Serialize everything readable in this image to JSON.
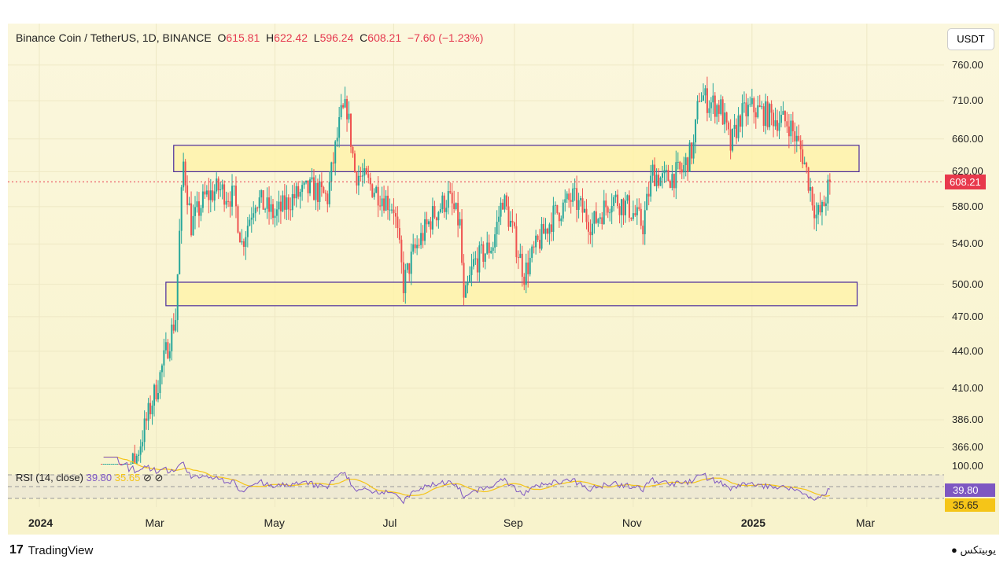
{
  "header": {
    "symbol": "Binance Coin / TetherUS, 1D, BINANCE",
    "o_label": "O",
    "o": "615.81",
    "h_label": "H",
    "h": "622.42",
    "l_label": "L",
    "l": "596.24",
    "c_label": "C",
    "c": "608.21",
    "change": "−7.60 (−1.23%)"
  },
  "currency_button": "USDT",
  "current_price": "608.21",
  "rsi": {
    "label": "RSI (14, close)",
    "value": "39.80",
    "ma": "35.65",
    "top_tick": "100.00"
  },
  "colors": {
    "up": "#26a69a",
    "down": "#ef5350",
    "rsi": "#7e57c2",
    "rsi_ma": "#f5c518",
    "zone_border": "#4a2a9a",
    "zone_fill": "#fff3a8"
  },
  "footer": {
    "brand": "TradingView",
    "watermark": "یوبیتکس"
  },
  "chart_data": {
    "type": "candlestick",
    "title": "Binance Coin / TetherUS, 1D, BINANCE",
    "y_scale": "log",
    "y_ticks": [
      "760.00",
      "710.00",
      "660.00",
      "620.00",
      "580.00",
      "540.00",
      "500.00",
      "470.00",
      "440.00",
      "410.00",
      "386.00",
      "366.00"
    ],
    "x_ticks": [
      {
        "label": "2024",
        "bold": true,
        "day": 0
      },
      {
        "label": "Mar",
        "day": 60
      },
      {
        "label": "May",
        "day": 121
      },
      {
        "label": "Jul",
        "day": 182
      },
      {
        "label": "Sep",
        "day": 244
      },
      {
        "label": "Nov",
        "day": 305
      },
      {
        "label": "2025",
        "bold": true,
        "day": 366
      },
      {
        "label": "Mar",
        "day": 425
      }
    ],
    "zones": [
      {
        "name": "resistance",
        "low": 620,
        "high": 652,
        "from_day": 69,
        "to_day": 421
      },
      {
        "name": "support",
        "low": 480,
        "high": 502,
        "from_day": 65,
        "to_day": 420
      }
    ],
    "close_path_day_price": [
      [
        31,
        310
      ],
      [
        50,
        360
      ],
      [
        62,
        420
      ],
      [
        70,
        470
      ],
      [
        74,
        630
      ],
      [
        78,
        560
      ],
      [
        85,
        590
      ],
      [
        92,
        600
      ],
      [
        100,
        590
      ],
      [
        104,
        540
      ],
      [
        111,
        590
      ],
      [
        121,
        570
      ],
      [
        130,
        590
      ],
      [
        140,
        600
      ],
      [
        148,
        590
      ],
      [
        155,
        690
      ],
      [
        158,
        700
      ],
      [
        162,
        620
      ],
      [
        172,
        600
      ],
      [
        182,
        580
      ],
      [
        187,
        500
      ],
      [
        192,
        530
      ],
      [
        202,
        570
      ],
      [
        210,
        590
      ],
      [
        216,
        560
      ],
      [
        218,
        480
      ],
      [
        223,
        520
      ],
      [
        233,
        540
      ],
      [
        238,
        590
      ],
      [
        249,
        510
      ],
      [
        256,
        540
      ],
      [
        264,
        570
      ],
      [
        274,
        590
      ],
      [
        284,
        560
      ],
      [
        294,
        590
      ],
      [
        302,
        580
      ],
      [
        310,
        560
      ],
      [
        315,
        620
      ],
      [
        320,
        610
      ],
      [
        330,
        620
      ],
      [
        336,
        650
      ],
      [
        339,
        720
      ],
      [
        343,
        710
      ],
      [
        350,
        700
      ],
      [
        355,
        650
      ],
      [
        360,
        690
      ],
      [
        366,
        700
      ],
      [
        375,
        690
      ],
      [
        385,
        680
      ],
      [
        392,
        640
      ],
      [
        398,
        580
      ],
      [
        399,
        570
      ],
      [
        402,
        575
      ],
      [
        406,
        608
      ]
    ]
  }
}
